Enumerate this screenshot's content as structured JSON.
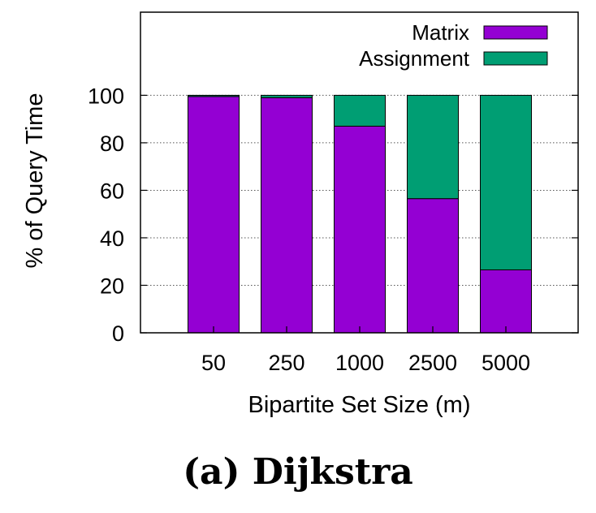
{
  "caption": "(a) Dijkstra",
  "chart_data": {
    "type": "bar",
    "stacked": true,
    "categories": [
      "50",
      "250",
      "1000",
      "2500",
      "5000"
    ],
    "series": [
      {
        "name": "Matrix",
        "color": "#9400d3",
        "values": [
          99.5,
          99,
          87,
          56.5,
          26.5
        ]
      },
      {
        "name": "Assignment",
        "color": "#009e73",
        "values": [
          0.5,
          1,
          13,
          43.5,
          73.5
        ]
      }
    ],
    "xlabel": "Bipartite Set Size (m)",
    "ylabel": "% of Query Time",
    "ylim": [
      0,
      135
    ],
    "yticks": [
      0,
      20,
      40,
      60,
      80,
      100
    ],
    "grid": "horizontal-dotted",
    "legend_position": "top-right"
  }
}
